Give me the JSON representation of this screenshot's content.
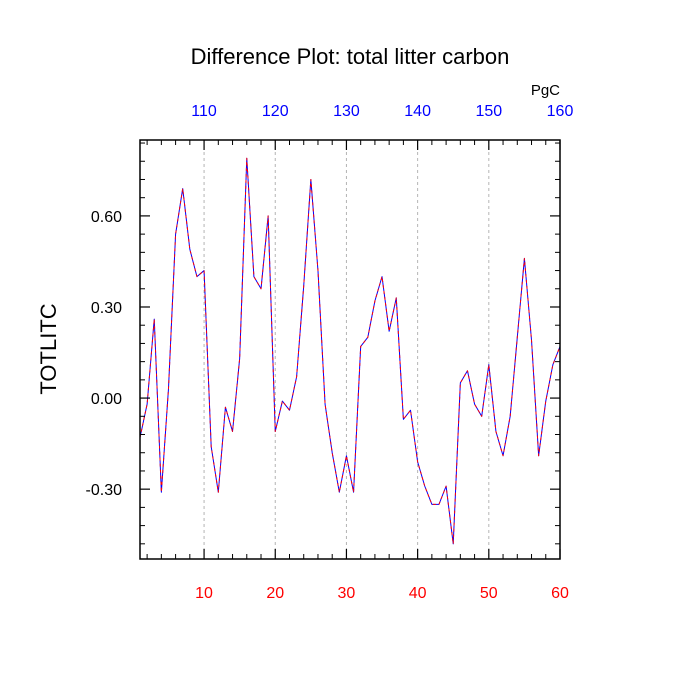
{
  "chart_data": {
    "type": "line",
    "title": "Difference Plot: total litter carbon",
    "units_label": "PgC",
    "ylabel": "TOTLITC",
    "xlim": [
      1,
      60
    ],
    "ylim": [
      -0.53,
      0.85
    ],
    "bottom_axis": {
      "ticks": [
        10,
        20,
        30,
        40,
        50,
        60
      ],
      "labels": [
        "10",
        "20",
        "30",
        "40",
        "50",
        "60"
      ],
      "color": "#ff0000"
    },
    "top_axis": {
      "ticks": [
        10,
        20,
        30,
        40,
        50,
        60
      ],
      "labels": [
        "110",
        "120",
        "130",
        "140",
        "150",
        "160"
      ],
      "color": "#0000ff"
    },
    "y_axis": {
      "ticks": [
        -0.3,
        0.0,
        0.3,
        0.6
      ],
      "labels": [
        "-0.30",
        "0.00",
        "0.30",
        "0.60"
      ]
    },
    "grid": "vertical dashed",
    "series": [
      {
        "line_color_1": "#0000ff",
        "line_color_2": "#ff0000",
        "style": "dashed",
        "x": [
          1,
          2,
          3,
          4,
          5,
          6,
          7,
          8,
          9,
          10,
          11,
          12,
          13,
          14,
          15,
          16,
          17,
          18,
          19,
          20,
          21,
          22,
          23,
          24,
          25,
          26,
          27,
          28,
          29,
          30,
          31,
          32,
          33,
          34,
          35,
          36,
          37,
          38,
          39,
          40,
          41,
          42,
          43,
          44,
          45,
          46,
          47,
          48,
          49,
          50,
          51,
          52,
          53,
          54,
          55,
          56,
          57,
          58,
          59,
          60
        ],
        "y": [
          -0.13,
          -0.02,
          0.26,
          -0.31,
          0.03,
          0.54,
          0.69,
          0.49,
          0.4,
          0.42,
          -0.16,
          -0.31,
          -0.03,
          -0.11,
          0.13,
          0.79,
          0.4,
          0.36,
          0.6,
          -0.11,
          -0.01,
          -0.04,
          0.07,
          0.37,
          0.72,
          0.42,
          -0.02,
          -0.18,
          -0.31,
          -0.19,
          -0.31,
          0.17,
          0.2,
          0.32,
          0.4,
          0.22,
          0.33,
          -0.07,
          -0.04,
          -0.21,
          -0.29,
          -0.35,
          -0.35,
          -0.29,
          -0.48,
          0.05,
          0.09,
          -0.02,
          -0.06,
          0.11,
          -0.11,
          -0.19,
          -0.06,
          0.2,
          0.46,
          0.19,
          -0.19,
          -0.01,
          0.11,
          0.17
        ]
      }
    ]
  }
}
